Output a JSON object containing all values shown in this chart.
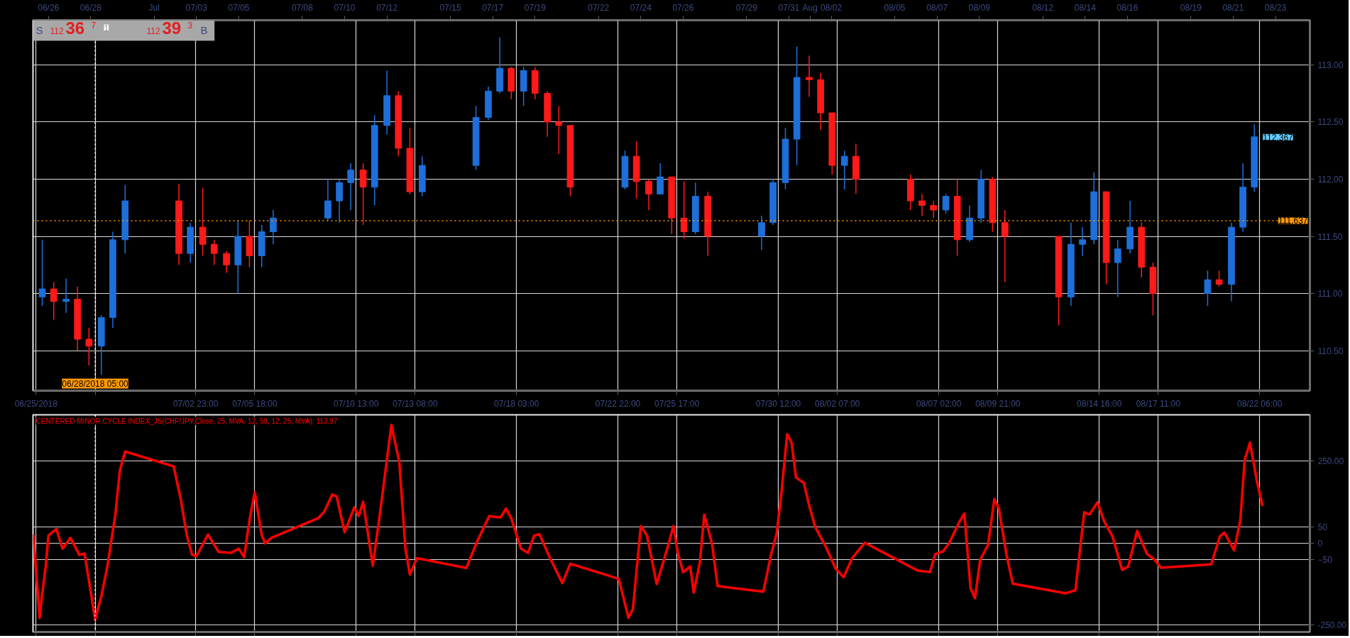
{
  "chart_data": [
    {
      "type": "candlestick",
      "xlim": [
        "2018-06-25T06:30",
        "2018-08-24T15:00"
      ],
      "ylim": [
        110.15,
        113.39
      ],
      "xticks": [
        {
          "value": "2018-06-25T10:00",
          "label": "06/25/2018"
        },
        {
          "value": "2018-06-28T05:00",
          "label": null
        },
        {
          "value": "2018-07-02T23:00",
          "label": "07/02 23:00"
        },
        {
          "value": "2018-07-05T18:00",
          "label": "07/05 18:00"
        },
        {
          "value": "2018-07-10T13:00",
          "label": "07/10 13:00"
        },
        {
          "value": "2018-07-13T08:00",
          "label": "07/13 08:00"
        },
        {
          "value": "2018-07-18T03:00",
          "label": "07/18 03:00"
        },
        {
          "value": "2018-07-22T22:00",
          "label": "07/22 22:00"
        },
        {
          "value": "2018-07-25T17:00",
          "label": "07/25 17:00"
        },
        {
          "value": "2018-07-30T12:00",
          "label": "07/30 12:00"
        },
        {
          "value": "2018-08-02T07:00",
          "label": "08/02 07:00"
        },
        {
          "value": "2018-08-07T02:00",
          "label": "08/07 02:00"
        },
        {
          "value": "2018-08-09T21:00",
          "label": "08/09 21:00"
        },
        {
          "value": "2018-08-14T16:00",
          "label": "08/14 16:00"
        },
        {
          "value": "2018-08-17T11:00",
          "label": "08/17 11:00"
        },
        {
          "value": "2018-08-22T06:00",
          "label": "08/22 06:00"
        }
      ],
      "x2lim": [
        "2018-06-25T06:30",
        "2018-08-24T15:00"
      ],
      "x2ticks": [
        {
          "value": "2018-06-26",
          "label": "06/26"
        },
        {
          "value": "2018-06-28",
          "label": "06/28"
        },
        {
          "value": "2018-07-01",
          "label": "Jul"
        },
        {
          "value": "2018-07-03",
          "label": "07/03"
        },
        {
          "value": "2018-07-05",
          "label": "07/05"
        },
        {
          "value": "2018-07-08",
          "label": "07/08"
        },
        {
          "value": "2018-07-10",
          "label": "07/10"
        },
        {
          "value": "2018-07-12",
          "label": "07/12"
        },
        {
          "value": "2018-07-15",
          "label": "07/15"
        },
        {
          "value": "2018-07-17",
          "label": "07/17"
        },
        {
          "value": "2018-07-19",
          "label": "07/19"
        },
        {
          "value": "2018-07-22",
          "label": "07/22"
        },
        {
          "value": "2018-07-24",
          "label": "07/24"
        },
        {
          "value": "2018-07-26",
          "label": "07/26"
        },
        {
          "value": "2018-07-29",
          "label": "07/29"
        },
        {
          "value": "2018-07-31",
          "label": "07/31"
        },
        {
          "value": "2018-08-01",
          "label": "Aug"
        },
        {
          "value": "2018-08-02",
          "label": "08/02"
        },
        {
          "value": "2018-08-05",
          "label": "08/05"
        },
        {
          "value": "2018-08-07",
          "label": "08/07"
        },
        {
          "value": "2018-08-09",
          "label": "08/09"
        },
        {
          "value": "2018-08-12",
          "label": "08/12"
        },
        {
          "value": "2018-08-14",
          "label": "08/14"
        },
        {
          "value": "2018-08-16",
          "label": "08/16"
        },
        {
          "value": "2018-08-19",
          "label": "08/19"
        },
        {
          "value": "2018-08-21",
          "label": "08/21"
        },
        {
          "value": "2018-08-23",
          "label": "08/23"
        }
      ],
      "yticks": [
        {
          "value": 110.5,
          "label": "110.50"
        },
        {
          "value": 111.0,
          "label": "111.00"
        },
        {
          "value": 111.5,
          "label": "111.50"
        },
        {
          "value": 112.0,
          "label": "112.00"
        },
        {
          "value": 112.5,
          "label": "112.50"
        },
        {
          "value": 113.0,
          "label": "113.00"
        }
      ],
      "grid": true,
      "x": [
        "2018-06-25T17:00",
        "2018-06-26T06:00",
        "2018-06-26T20:00",
        "2018-06-27T09:00",
        "2018-06-27T22:00",
        "2018-06-28T12:00",
        "2018-06-29T01:00",
        "2018-06-29T15:00",
        "2018-07-02T04:00",
        "2018-07-02T17:00",
        "2018-07-03T07:00",
        "2018-07-03T20:00",
        "2018-07-04T10:00",
        "2018-07-04T23:00",
        "2018-07-05T12:00",
        "2018-07-06T02:00",
        "2018-07-06T15:00",
        "2018-07-09T05:00",
        "2018-07-09T18:00",
        "2018-07-10T07:00",
        "2018-07-10T21:00",
        "2018-07-11T10:00",
        "2018-07-12T00:00",
        "2018-07-12T13:00",
        "2018-07-13T02:00",
        "2018-07-13T16:00",
        "2018-07-16T05:00",
        "2018-07-16T19:00",
        "2018-07-17T08:00",
        "2018-07-17T21:00",
        "2018-07-18T11:00",
        "2018-07-19T00:00",
        "2018-07-19T14:00",
        "2018-07-20T03:00",
        "2018-07-20T16:00",
        "2018-07-23T06:00",
        "2018-07-23T19:00",
        "2018-07-24T09:00",
        "2018-07-24T22:00",
        "2018-07-25T11:00",
        "2018-07-26T01:00",
        "2018-07-26T14:00",
        "2018-07-27T04:00",
        "2018-07-29T17:00",
        "2018-07-30T06:00",
        "2018-07-30T20:00",
        "2018-07-31T09:00",
        "2018-07-31T23:00",
        "2018-08-01T12:00",
        "2018-08-02T01:00",
        "2018-08-02T15:00",
        "2018-08-03T04:00",
        "2018-08-05T18:00",
        "2018-08-06T07:00",
        "2018-08-06T20:00",
        "2018-08-07T10:00",
        "2018-08-07T23:00",
        "2018-08-08T13:00",
        "2018-08-09T02:00",
        "2018-08-09T15:00",
        "2018-08-10T05:00",
        "2018-08-12T18:00",
        "2018-08-13T08:00",
        "2018-08-13T21:00",
        "2018-08-14T10:00",
        "2018-08-15T00:00",
        "2018-08-15T13:00",
        "2018-08-16T03:00",
        "2018-08-16T16:00",
        "2018-08-17T05:00",
        "2018-08-19T19:00",
        "2018-08-20T08:00",
        "2018-08-20T22:00",
        "2018-08-21T11:00",
        "2018-08-22T00:00"
      ],
      "ohlc": [
        [
          110.97,
          111.47,
          110.89,
          111.04
        ],
        [
          111.04,
          111.1,
          110.77,
          110.93
        ],
        [
          110.93,
          111.13,
          110.83,
          110.95
        ],
        [
          110.95,
          111.06,
          110.5,
          110.6
        ],
        [
          110.6,
          110.7,
          110.37,
          110.54
        ],
        [
          110.54,
          110.81,
          110.29,
          110.79
        ],
        [
          110.79,
          111.54,
          110.7,
          111.47
        ],
        [
          111.47,
          111.95,
          111.35,
          111.81
        ],
        [
          111.81,
          111.96,
          111.25,
          111.35
        ],
        [
          111.35,
          111.62,
          111.27,
          111.58
        ],
        [
          111.58,
          111.92,
          111.33,
          111.43
        ],
        [
          111.43,
          111.47,
          111.25,
          111.35
        ],
        [
          111.35,
          111.37,
          111.18,
          111.25
        ],
        [
          111.25,
          111.64,
          111.0,
          111.5
        ],
        [
          111.5,
          111.64,
          111.23,
          111.33
        ],
        [
          111.33,
          111.6,
          111.23,
          111.54
        ],
        [
          111.54,
          111.73,
          111.43,
          111.66
        ],
        [
          111.66,
          112.0,
          111.64,
          111.81
        ],
        [
          111.81,
          112.0,
          111.62,
          111.97
        ],
        [
          111.97,
          112.14,
          111.73,
          112.08
        ],
        [
          112.08,
          112.14,
          111.6,
          111.93
        ],
        [
          111.93,
          112.56,
          111.77,
          112.47
        ],
        [
          112.47,
          112.95,
          112.39,
          112.73
        ],
        [
          112.73,
          112.77,
          112.2,
          112.27
        ],
        [
          112.27,
          112.45,
          111.87,
          111.89
        ],
        [
          111.89,
          112.2,
          111.85,
          112.12
        ],
        [
          112.12,
          112.64,
          112.08,
          112.54
        ],
        [
          112.54,
          112.81,
          112.52,
          112.77
        ],
        [
          112.77,
          113.24,
          112.75,
          112.97
        ],
        [
          112.97,
          112.98,
          112.7,
          112.77
        ],
        [
          112.77,
          112.98,
          112.64,
          112.95
        ],
        [
          112.95,
          112.98,
          112.7,
          112.75
        ],
        [
          112.75,
          112.77,
          112.37,
          112.5
        ],
        [
          112.5,
          112.64,
          112.22,
          112.47
        ],
        [
          112.47,
          112.47,
          111.85,
          111.93
        ],
        [
          111.93,
          112.25,
          111.91,
          112.2
        ],
        [
          112.2,
          112.33,
          111.83,
          111.98
        ],
        [
          111.98,
          112.0,
          111.73,
          111.87
        ],
        [
          111.87,
          112.14,
          111.87,
          112.02
        ],
        [
          112.02,
          112.02,
          111.52,
          111.66
        ],
        [
          111.66,
          111.98,
          111.48,
          111.54
        ],
        [
          111.54,
          111.97,
          111.52,
          111.85
        ],
        [
          111.85,
          111.89,
          111.33,
          111.5
        ],
        [
          111.5,
          111.68,
          111.38,
          111.62
        ],
        [
          111.62,
          112.0,
          111.6,
          111.97
        ],
        [
          111.97,
          112.45,
          111.91,
          112.35
        ],
        [
          112.35,
          113.16,
          112.12,
          112.89
        ],
        [
          112.89,
          113.08,
          112.72,
          112.87
        ],
        [
          112.87,
          112.93,
          112.43,
          112.58
        ],
        [
          112.58,
          112.58,
          112.04,
          112.12
        ],
        [
          112.12,
          112.25,
          111.91,
          112.2
        ],
        [
          112.2,
          112.31,
          111.87,
          112.0
        ],
        [
          112.0,
          112.04,
          111.73,
          111.81
        ],
        [
          111.81,
          111.87,
          111.68,
          111.77
        ],
        [
          111.77,
          111.81,
          111.66,
          111.73
        ],
        [
          111.73,
          111.87,
          111.7,
          111.85
        ],
        [
          111.85,
          112.0,
          111.33,
          111.47
        ],
        [
          111.47,
          111.77,
          111.45,
          111.66
        ],
        [
          111.66,
          112.08,
          111.62,
          112.0
        ],
        [
          112.0,
          112.02,
          111.54,
          111.62
        ],
        [
          111.62,
          111.73,
          111.1,
          111.5
        ],
        [
          111.5,
          111.5,
          110.72,
          110.97
        ],
        [
          110.97,
          111.62,
          110.89,
          111.43
        ],
        [
          111.43,
          111.58,
          111.33,
          111.47
        ],
        [
          111.47,
          112.06,
          111.43,
          111.89
        ],
        [
          111.89,
          111.89,
          111.08,
          111.27
        ],
        [
          111.27,
          111.47,
          110.97,
          111.39
        ],
        [
          111.39,
          111.81,
          111.35,
          111.58
        ],
        [
          111.58,
          111.62,
          111.14,
          111.23
        ],
        [
          111.23,
          111.27,
          110.81,
          111.0
        ],
        [
          111.0,
          111.2,
          110.89,
          111.12
        ],
        [
          111.12,
          111.2,
          111.06,
          111.08
        ],
        [
          111.08,
          111.62,
          110.93,
          111.58
        ],
        [
          111.58,
          112.14,
          111.54,
          111.93
        ],
        [
          111.93,
          112.48,
          111.89,
          112.37
        ]
      ],
      "colors": [
        "#1e6fd9",
        "#ff1a1a",
        "#1e6fd9",
        "#ff1a1a",
        "#ff1a1a",
        "#1e6fd9",
        "#1e6fd9",
        "#1e6fd9",
        "#ff1a1a",
        "#1e6fd9",
        "#ff1a1a",
        "#ff1a1a",
        "#ff1a1a",
        "#1e6fd9",
        "#ff1a1a",
        "#1e6fd9",
        "#1e6fd9",
        "#1e6fd9",
        "#1e6fd9",
        "#1e6fd9",
        "#ff1a1a",
        "#1e6fd9",
        "#1e6fd9",
        "#ff1a1a",
        "#ff1a1a",
        "#1e6fd9",
        "#1e6fd9",
        "#1e6fd9",
        "#1e6fd9",
        "#ff1a1a",
        "#1e6fd9",
        "#ff1a1a",
        "#ff1a1a",
        "#ff1a1a",
        "#ff1a1a",
        "#1e6fd9",
        "#ff1a1a",
        "#ff1a1a",
        "#1e6fd9",
        "#ff1a1a",
        "#ff1a1a",
        "#1e6fd9",
        "#ff1a1a",
        "#1e6fd9",
        "#1e6fd9",
        "#1e6fd9",
        "#1e6fd9",
        "#ff1a1a",
        "#ff1a1a",
        "#ff1a1a",
        "#1e6fd9",
        "#ff1a1a",
        "#ff1a1a",
        "#ff1a1a",
        "#ff1a1a",
        "#1e6fd9",
        "#ff1a1a",
        "#1e6fd9",
        "#1e6fd9",
        "#ff1a1a",
        "#ff1a1a",
        "#ff1a1a",
        "#1e6fd9",
        "#1e6fd9",
        "#1e6fd9",
        "#ff1a1a",
        "#1e6fd9",
        "#1e6fd9",
        "#ff1a1a",
        "#ff1a1a",
        "#1e6fd9",
        "#ff1a1a",
        "#1e6fd9",
        "#1e6fd9",
        "#1e6fd9"
      ],
      "ref_lines": [
        {
          "axis": "y",
          "value": 111.637,
          "label": "111.637",
          "color": "#ff9900",
          "line_style": "dotted"
        },
        {
          "axis": "x",
          "value": "2018-06-28T05:00",
          "label": "06/28/2018 05:00",
          "color": "#ffffff",
          "line_style": "dotted"
        }
      ],
      "annotations": [
        "S",
        "112",
        "36",
        "7",
        "1",
        "112",
        "39",
        "3",
        "B",
        {
          "text": "112.367",
          "x": "2018-08-22T00:00",
          "y": 112.367
        }
      ]
    },
    {
      "type": "line",
      "title": "CENTERED MINOR CYCLE INDEX_JS(CHF/JPY.Close, 25, MVA, 12, 50, 12, 25, MVA): 113.97",
      "xlim": [
        "2018-06-25T06:30",
        "2018-08-24T15:00"
      ],
      "ylim": [
        -271,
        391
      ],
      "tick_labels": "y",
      "grid": true,
      "xticks": [
        {
          "value": "2018-06-25T10:00",
          "label": null
        },
        {
          "value": "2018-06-28T05:00",
          "label": null
        },
        {
          "value": "2018-07-02T23:00",
          "label": null
        },
        {
          "value": "2018-07-05T18:00",
          "label": null
        },
        {
          "value": "2018-07-10T13:00",
          "label": null
        },
        {
          "value": "2018-07-13T08:00",
          "label": null
        },
        {
          "value": "2018-07-18T03:00",
          "label": null
        },
        {
          "value": "2018-07-22T22:00",
          "label": null
        },
        {
          "value": "2018-07-25T17:00",
          "label": null
        },
        {
          "value": "2018-07-30T12:00",
          "label": null
        },
        {
          "value": "2018-08-02T07:00",
          "label": null
        },
        {
          "value": "2018-08-07T02:00",
          "label": null
        },
        {
          "value": "2018-08-09T21:00",
          "label": null
        },
        {
          "value": "2018-08-14T16:00",
          "label": null
        },
        {
          "value": "2018-08-17T11:00",
          "label": null
        },
        {
          "value": "2018-08-22T06:00",
          "label": null
        }
      ],
      "yticks": [
        {
          "value": -250,
          "label": "-250.00"
        },
        -50,
        0,
        50,
        {
          "value": 250,
          "label": "250.00"
        }
      ],
      "ref_lines": [
        {
          "axis": "x",
          "value": "2018-06-28T05:00",
          "label": null,
          "color": "#ffffff",
          "line_style": "dotted"
        }
      ],
      "series": [
        {
          "color": "#ff0000",
          "x": [
            "2018-06-25T07:00",
            "2018-06-25T14:00",
            "2018-06-25T16:00",
            "2018-06-25T21:00",
            "2018-06-26T00:00",
            "2018-06-26T09:00",
            "2018-06-26T16:00",
            "2018-06-27T01:00",
            "2018-06-27T11:00",
            "2018-06-27T17:00",
            "2018-06-28T00:00",
            "2018-06-28T05:00",
            "2018-06-28T12:00",
            "2018-06-28T19:00",
            "2018-06-29T04:00",
            "2018-06-29T09:00",
            "2018-06-29T15:00",
            "2018-07-01T22:00",
            "2018-07-02T06:00",
            "2018-07-02T13:00",
            "2018-07-02T19:00",
            "2018-07-03T00:00",
            "2018-07-03T13:00",
            "2018-07-04T01:00",
            "2018-07-04T15:00",
            "2018-07-05T00:00",
            "2018-07-05T06:00",
            "2018-07-05T12:00",
            "2018-07-05T18:00",
            "2018-07-06T02:00",
            "2018-07-06T06:00",
            "2018-07-06T13:00",
            "2018-07-08T18:00",
            "2018-07-09T01:00",
            "2018-07-09T10:00",
            "2018-07-09T15:00",
            "2018-07-10T00:00",
            "2018-07-10T11:00",
            "2018-07-10T16:00",
            "2018-07-10T21:00",
            "2018-07-11T02:00",
            "2018-07-11T08:00",
            "2018-07-11T18:00",
            "2018-07-12T05:00",
            "2018-07-12T14:00",
            "2018-07-12T21:00",
            "2018-07-13T02:00",
            "2018-07-13T10:00",
            "2018-07-15T18:00",
            "2018-07-16T06:00",
            "2018-07-16T20:00",
            "2018-07-17T09:00",
            "2018-07-17T15:00",
            "2018-07-17T21:00",
            "2018-07-18T08:00",
            "2018-07-18T16:00",
            "2018-07-18T23:00",
            "2018-07-19T05:00",
            "2018-07-19T17:00",
            "2018-07-20T07:00",
            "2018-07-20T16:00",
            "2018-07-22T23:00",
            "2018-07-23T10:00",
            "2018-07-23T15:00",
            "2018-07-24T00:00",
            "2018-07-24T07:00",
            "2018-07-24T18:00",
            "2018-07-25T06:00",
            "2018-07-25T13:00",
            "2018-07-25T18:00",
            "2018-07-26T00:00",
            "2018-07-26T08:00",
            "2018-07-26T12:00",
            "2018-07-26T19:00",
            "2018-07-27T00:00",
            "2018-07-27T09:00",
            "2018-07-27T15:00",
            "2018-07-29T19:00",
            "2018-07-30T04:00",
            "2018-07-30T10:00",
            "2018-07-30T15:00",
            "2018-07-30T22:00",
            "2018-07-31T03:00",
            "2018-07-31T08:00",
            "2018-07-31T17:00",
            "2018-07-31T23:00",
            "2018-08-01T06:00",
            "2018-08-01T18:00",
            "2018-08-02T05:00",
            "2018-08-02T14:00",
            "2018-08-03T00:00",
            "2018-08-03T14:00",
            "2018-08-06T02:00",
            "2018-08-06T16:00",
            "2018-08-06T22:00",
            "2018-08-07T07:00",
            "2018-08-07T14:00",
            "2018-08-08T02:00",
            "2018-08-08T07:00",
            "2018-08-08T14:00",
            "2018-08-08T19:00",
            "2018-08-09T01:00",
            "2018-08-09T10:00",
            "2018-08-09T17:00",
            "2018-08-09T22:00",
            "2018-08-10T07:00",
            "2018-08-10T14:00",
            "2018-08-13T02:00",
            "2018-08-13T13:00",
            "2018-08-13T23:00",
            "2018-08-14T05:00",
            "2018-08-14T14:00",
            "2018-08-14T22:00",
            "2018-08-15T07:00",
            "2018-08-15T18:00",
            "2018-08-16T01:00",
            "2018-08-16T11:00",
            "2018-08-16T22:00",
            "2018-08-17T07:00",
            "2018-08-17T14:00",
            "2018-08-19T23:00",
            "2018-08-20T09:00",
            "2018-08-20T14:00",
            "2018-08-21T01:00",
            "2018-08-21T08:00",
            "2018-08-21T13:00",
            "2018-08-21T19:00",
            "2018-08-22T03:00",
            "2018-08-22T09:00"
          ],
          "values": [
            23,
            -228,
            -175,
            -69,
            23,
            43,
            -17,
            16,
            -36,
            -32,
            -149,
            -234,
            -162,
            -69,
            89,
            221,
            279,
            234,
            135,
            23,
            -36,
            -40,
            26,
            -27,
            -30,
            -17,
            -43,
            69,
            155,
            23,
            -1,
            16,
            76,
            96,
            148,
            142,
            33,
            109,
            82,
            126,
            36,
            -69,
            129,
            360,
            247,
            -17,
            -96,
            -46,
            -76,
            3,
            82,
            78,
            105,
            76,
            -17,
            -30,
            23,
            27,
            -46,
            -122,
            -63,
            -109,
            -228,
            -201,
            52,
            23,
            -125,
            -17,
            52,
            -30,
            -89,
            -71,
            -151,
            -58,
            87,
            -5,
            -131,
            -148,
            -32,
            28,
            140,
            332,
            306,
            200,
            183,
            114,
            48,
            -12,
            -78,
            -104,
            -45,
            1,
            -84,
            -88,
            -34,
            -25,
            1,
            68,
            90,
            -137,
            -168,
            -51,
            -5,
            134,
            107,
            -38,
            -124,
            -153,
            -144,
            94,
            87,
            124,
            64,
            21,
            -82,
            -71,
            37,
            -32,
            -51,
            -75,
            -65,
            21,
            32,
            -22,
            68,
            253,
            306,
            187,
            116
          ]
        }
      ]
    }
  ]
}
